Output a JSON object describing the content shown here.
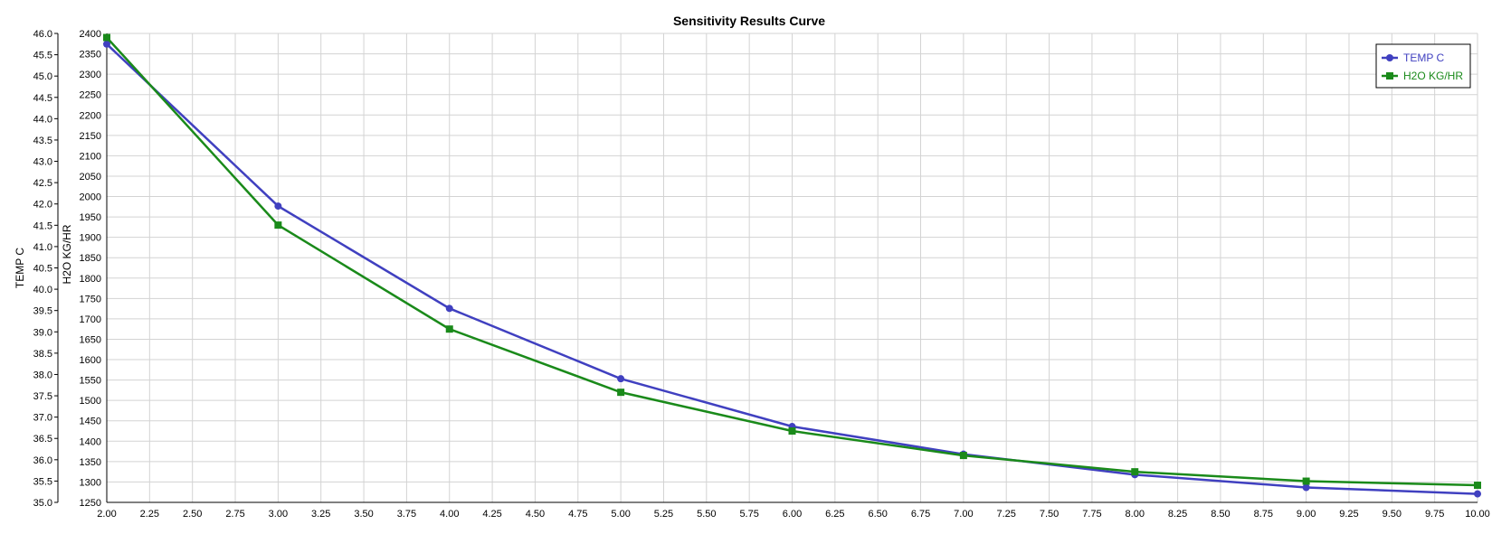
{
  "colors": {
    "background": "#ffffff",
    "grid": "#d3d3d3",
    "axis": "#000000",
    "temp_series": "#4040c0",
    "h2o_series": "#1a8a1a"
  },
  "chart_data": {
    "type": "line",
    "title": "Sensitivity Results Curve",
    "xlabel": "",
    "ylabel_left_outer": "TEMP C",
    "ylabel_left_inner": "H2O KG/HR",
    "xlim": [
      2.0,
      10.0
    ],
    "ylim_temp": [
      35.0,
      46.0
    ],
    "ylim_h2o": [
      1250,
      2400
    ],
    "grid": true,
    "legend_position": "top-right",
    "x_ticks": [
      "2.00",
      "2.25",
      "2.50",
      "2.75",
      "3.00",
      "3.25",
      "3.50",
      "3.75",
      "4.00",
      "4.25",
      "4.50",
      "4.75",
      "5.00",
      "5.25",
      "5.50",
      "5.75",
      "6.00",
      "6.25",
      "6.50",
      "6.75",
      "7.00",
      "7.25",
      "7.50",
      "7.75",
      "8.00",
      "8.25",
      "8.50",
      "8.75",
      "9.00",
      "9.25",
      "9.50",
      "9.75",
      "10.00"
    ],
    "y_ticks_temp": [
      "35.0",
      "35.5",
      "36.0",
      "36.5",
      "37.0",
      "37.5",
      "38.0",
      "38.5",
      "39.0",
      "39.5",
      "40.0",
      "40.5",
      "41.0",
      "41.5",
      "42.0",
      "42.5",
      "43.0",
      "43.5",
      "44.0",
      "44.5",
      "45.0",
      "45.5",
      "46.0"
    ],
    "y_ticks_h2o": [
      "1250",
      "1300",
      "1350",
      "1400",
      "1450",
      "1500",
      "1550",
      "1600",
      "1650",
      "1700",
      "1750",
      "1800",
      "1850",
      "1900",
      "1950",
      "2000",
      "2050",
      "2100",
      "2150",
      "2200",
      "2250",
      "2300",
      "2350",
      "2400"
    ],
    "x": [
      2,
      3,
      4,
      5,
      6,
      7,
      8,
      9,
      10
    ],
    "series": [
      {
        "name": "TEMP C",
        "axis": "temp",
        "marker": "circle",
        "values": [
          45.75,
          41.95,
          39.55,
          37.9,
          36.78,
          36.13,
          35.65,
          35.35,
          35.2
        ]
      },
      {
        "name": "H2O KG/HR",
        "axis": "h2o",
        "marker": "square",
        "values": [
          2390,
          1930,
          1675,
          1520,
          1425,
          1365,
          1325,
          1302,
          1292
        ]
      }
    ]
  }
}
